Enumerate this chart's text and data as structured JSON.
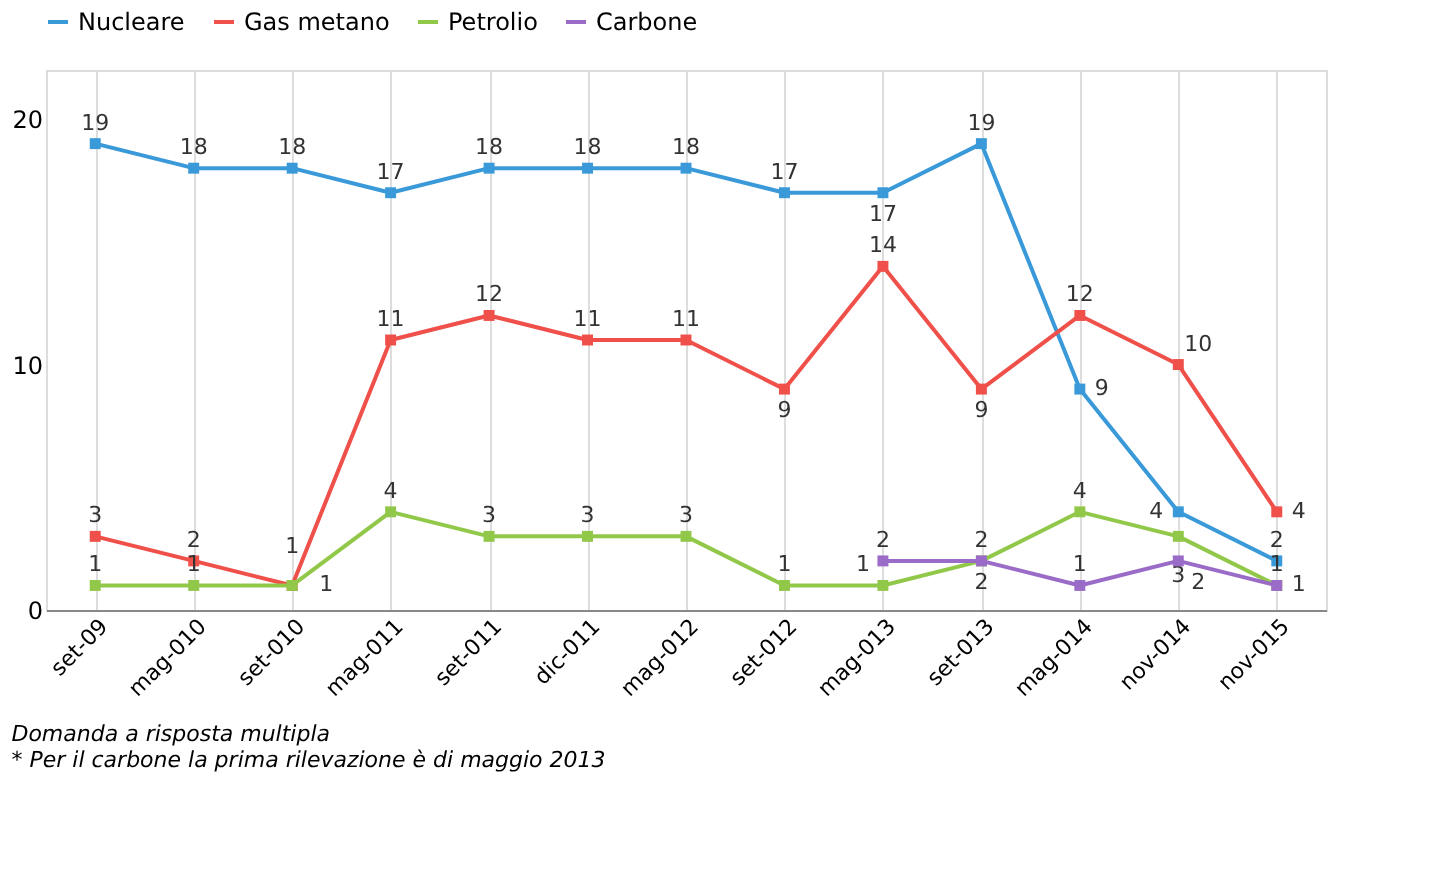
{
  "chart_data": {
    "type": "line",
    "categories": [
      "set-09",
      "mag-010",
      "set-010",
      "mag-011",
      "set-011",
      "dic-011",
      "mag-012",
      "set-012",
      "mag-013",
      "set-013",
      "mag-014",
      "nov-014",
      "nov-015"
    ],
    "series": [
      {
        "name": "Nucleare",
        "color": "#3a9ad9",
        "values": [
          19,
          18,
          18,
          17,
          18,
          18,
          18,
          17,
          17,
          19,
          9,
          4,
          2
        ]
      },
      {
        "name": "Gas metano",
        "color": "#f0504a",
        "values": [
          3,
          2,
          1,
          11,
          12,
          11,
          11,
          9,
          14,
          9,
          12,
          10,
          4
        ]
      },
      {
        "name": "Petrolio",
        "color": "#92c84a",
        "values": [
          1,
          1,
          1,
          4,
          3,
          3,
          3,
          1,
          1,
          2,
          4,
          3,
          1
        ]
      },
      {
        "name": "Carbone",
        "color": "#9b6bc8",
        "values": [
          null,
          null,
          null,
          null,
          null,
          null,
          null,
          null,
          2,
          2,
          1,
          2,
          1
        ]
      }
    ],
    "ylim": [
      0,
      22
    ],
    "yticks": [
      0,
      10,
      20
    ],
    "grid": "x",
    "legend": "top",
    "marker": "square",
    "data_labels": true,
    "annotations": [
      "Domanda a risposta multipla",
      "* Per il carbone la prima rilevazione è di maggio 2013"
    ]
  }
}
